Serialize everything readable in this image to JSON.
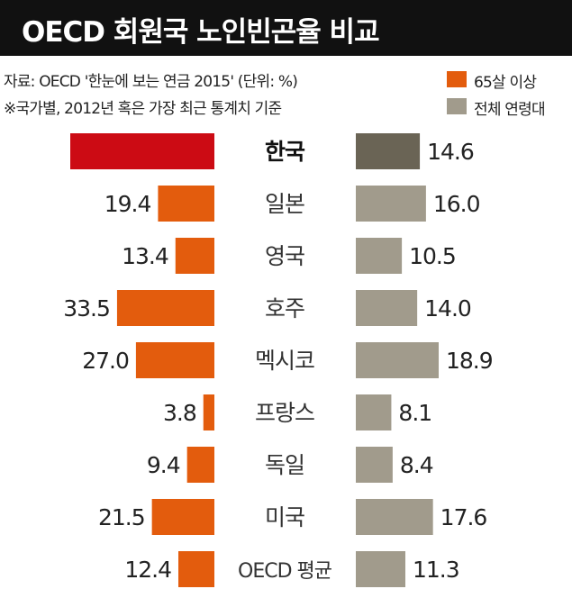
{
  "header": {
    "title": "OECD 회원국 노인빈곤율 비교"
  },
  "notes": {
    "source": "자료: OECD '한눈에 보는 연금 2015' (단위: %)",
    "footnote": "※국가별, 2012년 혹은 가장 최근 통계치 기준"
  },
  "legend": [
    {
      "label": "65살 이상",
      "color": "#e35c0d"
    },
    {
      "label": "전체 연령대",
      "color": "#a19b8c"
    }
  ],
  "colors": {
    "elderly": "#e35c0d",
    "elderly_highlight": "#cc0b14",
    "all": "#a19b8c",
    "all_highlight": "#6a6455"
  },
  "chart_data": {
    "type": "bar",
    "title": "OECD 회원국 노인빈곤율 비교",
    "unit": "%",
    "categories": [
      "한국",
      "일본",
      "영국",
      "호주",
      "멕시코",
      "프랑스",
      "독일",
      "미국",
      "OECD 평균"
    ],
    "series": [
      {
        "name": "65살 이상",
        "values": [
          49.6,
          19.4,
          13.4,
          33.5,
          27.0,
          3.8,
          9.4,
          21.5,
          12.4
        ]
      },
      {
        "name": "전체 연령대",
        "values": [
          14.6,
          16.0,
          10.5,
          14.0,
          18.9,
          8.1,
          8.4,
          17.6,
          11.3
        ]
      }
    ],
    "value_labels": {
      "65살 이상": [
        "49.6",
        "19.4",
        "13.4",
        "33.5",
        "27.0",
        "3.8",
        "9.4",
        "21.5",
        "12.4"
      ],
      "전체 연령대": [
        "14.6",
        "16.0",
        "10.5",
        "14.0",
        "18.9",
        "8.1",
        "8.4",
        "17.6",
        "11.3"
      ]
    },
    "layout": "butterfly",
    "highlight_category": "한국",
    "grid": false
  }
}
